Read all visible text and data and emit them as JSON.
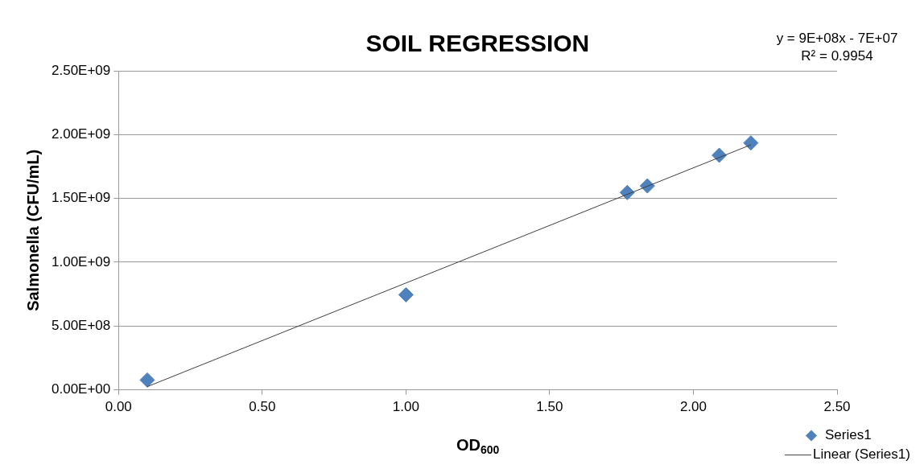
{
  "chart_data": {
    "type": "scatter",
    "title": "SOIL REGRESSION",
    "xlabel": "OD$_{600}$",
    "ylabel": "Salmonella (CFU/mL)",
    "annotations": [
      "y = 9E+08x - 7E+07",
      "R² = 0.9954"
    ],
    "series": [
      {
        "name": "Series1",
        "type": "scatter",
        "color": "#4f81bd",
        "marker": "diamond",
        "x": [
          0.1,
          1.0,
          1.77,
          1.84,
          2.09,
          2.2
        ],
        "values": [
          77000000.0,
          745000000.0,
          1546000000.0,
          1598000000.0,
          1838000000.0,
          1935000000.0
        ]
      },
      {
        "name": "Linear (Series1)",
        "type": "line",
        "color": "#404040",
        "marker": "none",
        "x": [
          0.1,
          2.2
        ],
        "values": [
          25000000.0,
          1920000000.0
        ]
      }
    ],
    "xlim": [
      0,
      2.5
    ],
    "xticks": [
      {
        "value": 0,
        "label": "0.00"
      },
      {
        "value": 0.5,
        "label": "0.50"
      },
      {
        "value": 1,
        "label": "1.00"
      },
      {
        "value": 1.5,
        "label": "1.50"
      },
      {
        "value": 2,
        "label": "2.00"
      },
      {
        "value": 2.5,
        "label": "2.50"
      }
    ],
    "ylim": [
      0,
      2500000000.0
    ],
    "yticks": [
      {
        "value": 0,
        "label": "0.00E+00"
      },
      {
        "value": 500000000.0,
        "label": "5.00E+08"
      },
      {
        "value": 1000000000.0,
        "label": "1.00E+09"
      },
      {
        "value": 1500000000.0,
        "label": "1.50E+09"
      },
      {
        "value": 2000000000.0,
        "label": "2.00E+09"
      },
      {
        "value": 2500000000.0,
        "label": "2.50E+09"
      }
    ],
    "grid": "y",
    "legend": "bottom right"
  }
}
